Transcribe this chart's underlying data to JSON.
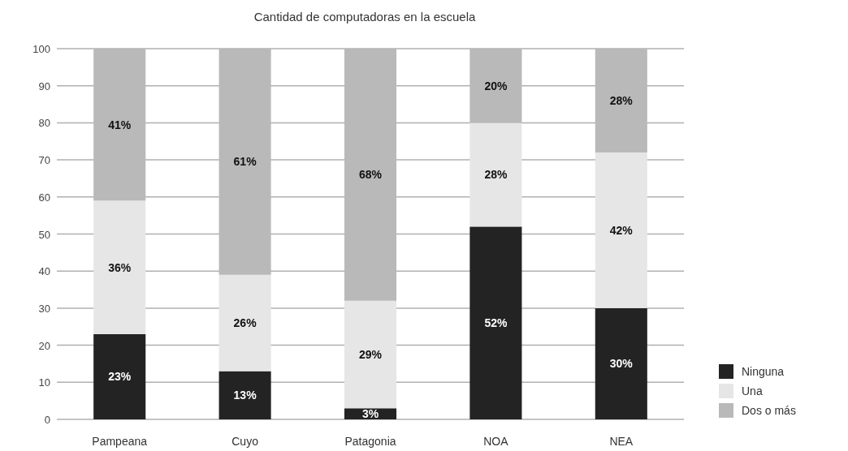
{
  "chart_data": {
    "type": "bar",
    "title": "Cantidad de computadoras en la escuela",
    "categories": [
      "Pampeana",
      "Cuyo",
      "Patagonia",
      "NOA",
      "NEA"
    ],
    "stacked": true,
    "series": [
      {
        "name": "Ninguna",
        "color": "#232323",
        "values": [
          23,
          13,
          3,
          52,
          30
        ],
        "value_labels": [
          "23%",
          "13%",
          "3%",
          "52%",
          "30%"
        ]
      },
      {
        "name": "Una",
        "color": "#e6e6e6",
        "values": [
          36,
          26,
          29,
          28,
          42
        ],
        "value_labels": [
          "36%",
          "26%",
          "29%",
          "28%",
          "42%"
        ]
      },
      {
        "name": "Dos o más",
        "color": "#b9b9b9",
        "values": [
          41,
          61,
          68,
          20,
          28
        ],
        "value_labels": [
          "41%",
          "61%",
          "68%",
          "20%",
          "28%"
        ]
      }
    ],
    "ylim": [
      0,
      100
    ],
    "yticks": [
      0,
      10,
      20,
      30,
      40,
      50,
      60,
      70,
      80,
      90,
      100
    ],
    "grid": "y",
    "legend": "bottom right"
  }
}
